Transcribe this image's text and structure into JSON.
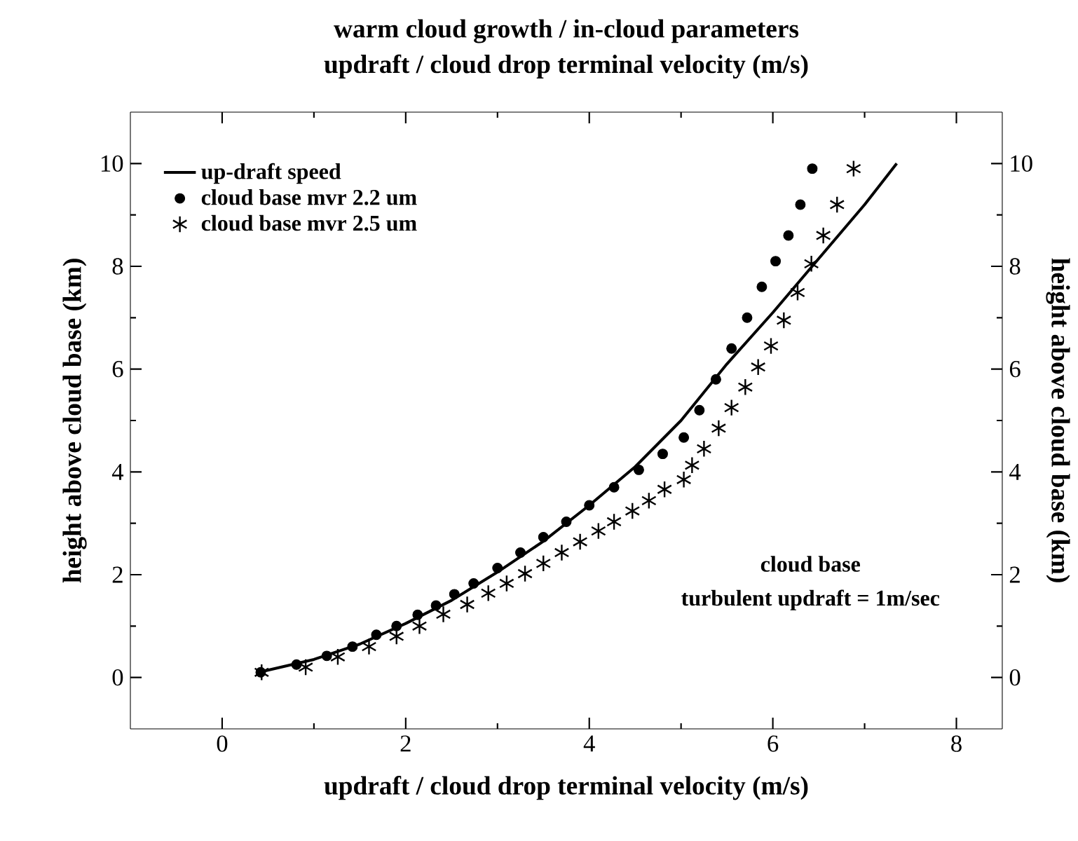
{
  "chart_data": {
    "type": "scatter",
    "title": "warm cloud growth / in-cloud parameters",
    "subtitle": "updraft / cloud drop terminal velocity (m/s)",
    "xlabel": "updraft / cloud drop terminal velocity (m/s)",
    "ylabel": "height above cloud base (km)",
    "y2label": "height above cloud base (km)",
    "xlim": [
      -1,
      8.5
    ],
    "ylim": [
      -1,
      11
    ],
    "y2lim": [
      -1,
      11
    ],
    "xticks": [
      0,
      2,
      4,
      6,
      8
    ],
    "yticks": [
      0,
      2,
      4,
      6,
      8,
      10
    ],
    "y2ticks": [
      0,
      2,
      4,
      6,
      8,
      10
    ],
    "legend": "top left",
    "annotations": [
      "cloud base",
      "turbulent updraft = 1m/sec"
    ],
    "series": [
      {
        "name": "up-draft speed",
        "type": "line",
        "marker": "none",
        "line_style": "solid",
        "color": "#000000",
        "x": [
          0.4,
          1,
          1.5,
          2,
          2.5,
          3,
          3.5,
          4,
          4.5,
          5,
          5.5,
          6,
          6.5,
          7,
          7.35
        ],
        "values": [
          0.1,
          0.35,
          0.65,
          1.05,
          1.5,
          2.05,
          2.65,
          3.35,
          4.1,
          5.0,
          6.1,
          7.1,
          8.15,
          9.2,
          10
        ]
      },
      {
        "name": "cloud base mvr 2.2 um",
        "marker": "circle",
        "color": "#000000",
        "x": [
          0.42,
          0.81,
          1.14,
          1.42,
          1.68,
          1.9,
          2.13,
          2.33,
          2.53,
          2.74,
          3.0,
          3.25,
          3.5,
          3.75,
          4.0,
          4.27,
          4.54,
          4.8,
          5.03,
          5.2,
          5.38,
          5.55,
          5.72,
          5.88,
          6.03,
          6.17,
          6.3,
          6.43
        ],
        "values": [
          0.1,
          0.25,
          0.42,
          0.6,
          0.83,
          1.0,
          1.22,
          1.4,
          1.62,
          1.83,
          2.13,
          2.43,
          2.73,
          3.03,
          3.35,
          3.7,
          4.04,
          4.35,
          4.67,
          5.2,
          5.8,
          6.4,
          7.0,
          7.6,
          8.1,
          8.6,
          9.2,
          9.9
        ]
      },
      {
        "name": "cloud base mvr 2.5 um",
        "marker": "cross",
        "color": "#000000",
        "x": [
          0.43,
          0.91,
          1.26,
          1.6,
          1.9,
          2.15,
          2.41,
          2.67,
          2.9,
          3.1,
          3.3,
          3.5,
          3.7,
          3.9,
          4.1,
          4.27,
          4.47,
          4.65,
          4.82,
          5.03,
          5.12,
          5.25,
          5.41,
          5.55,
          5.7,
          5.84,
          5.98,
          6.12,
          6.27,
          6.42,
          6.55,
          6.7,
          6.88
        ],
        "values": [
          0.1,
          0.2,
          0.4,
          0.6,
          0.8,
          1.0,
          1.23,
          1.42,
          1.64,
          1.83,
          2.02,
          2.22,
          2.43,
          2.64,
          2.85,
          3.03,
          3.24,
          3.44,
          3.66,
          3.85,
          4.13,
          4.45,
          4.85,
          5.25,
          5.65,
          6.04,
          6.45,
          6.95,
          7.49,
          8.05,
          8.6,
          9.2,
          9.9
        ]
      }
    ]
  }
}
